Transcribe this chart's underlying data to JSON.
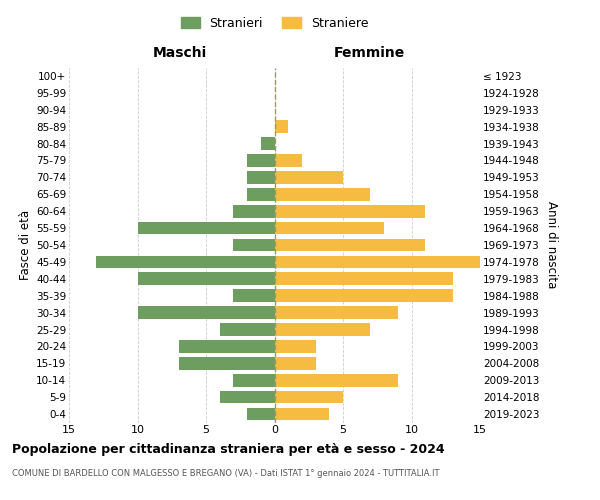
{
  "age_groups_bottom_to_top": [
    "0-4",
    "5-9",
    "10-14",
    "15-19",
    "20-24",
    "25-29",
    "30-34",
    "35-39",
    "40-44",
    "45-49",
    "50-54",
    "55-59",
    "60-64",
    "65-69",
    "70-74",
    "75-79",
    "80-84",
    "85-89",
    "90-94",
    "95-99",
    "100+"
  ],
  "birth_years_bottom_to_top": [
    "2019-2023",
    "2014-2018",
    "2009-2013",
    "2004-2008",
    "1999-2003",
    "1994-1998",
    "1989-1993",
    "1984-1988",
    "1979-1983",
    "1974-1978",
    "1969-1973",
    "1964-1968",
    "1959-1963",
    "1954-1958",
    "1949-1953",
    "1944-1948",
    "1939-1943",
    "1934-1938",
    "1929-1933",
    "1924-1928",
    "≤ 1923"
  ],
  "males_bottom_to_top": [
    2,
    4,
    3,
    7,
    7,
    4,
    10,
    3,
    10,
    13,
    3,
    10,
    3,
    2,
    2,
    2,
    1,
    0,
    0,
    0,
    0
  ],
  "females_bottom_to_top": [
    4,
    5,
    9,
    3,
    3,
    7,
    9,
    13,
    13,
    15,
    11,
    8,
    11,
    7,
    5,
    2,
    0,
    1,
    0,
    0,
    0
  ],
  "male_color": "#6e9e5f",
  "female_color": "#f5bc41",
  "xlim": 15,
  "title": "Popolazione per cittadinanza straniera per età e sesso - 2024",
  "subtitle": "COMUNE DI BARDELLO CON MALGESSO E BREGANO (VA) - Dati ISTAT 1° gennaio 2024 - TUTTITALIA.IT",
  "header_left": "Maschi",
  "header_right": "Femmine",
  "ylabel_left": "Fasce di età",
  "ylabel_right": "Anni di nascita",
  "legend_male": "Stranieri",
  "legend_female": "Straniere",
  "background_color": "#ffffff",
  "grid_color": "#cccccc",
  "center_line_color": "#999966",
  "bar_height": 0.75
}
